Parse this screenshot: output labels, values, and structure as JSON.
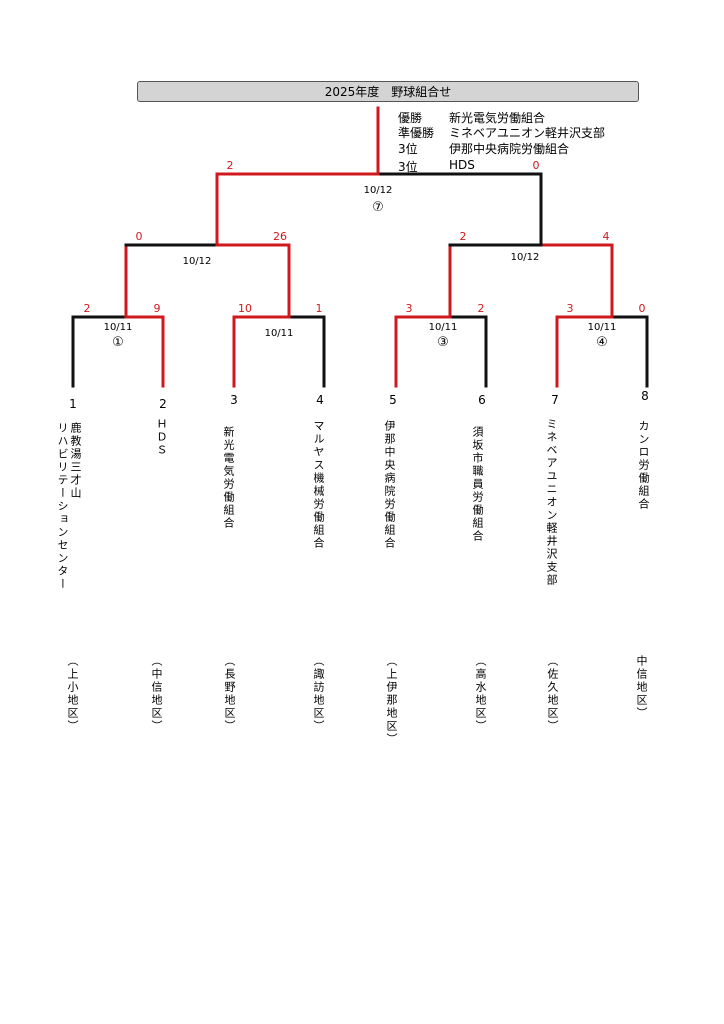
{
  "title": "2025年度　野球組合せ",
  "results": [
    {
      "label": "優勝",
      "team": "新光電気労働組合"
    },
    {
      "label": "準優勝",
      "team": "ミネベアユニオン軽井沢支部"
    },
    {
      "label": "3位",
      "team": "伊那中央病院労働組合"
    },
    {
      "label": "3位",
      "team": "HDS"
    }
  ],
  "teams": [
    {
      "seed": "1",
      "name": "鹿教湯三才山\nリハビリテーションセンター",
      "region": "（上小地区）"
    },
    {
      "seed": "2",
      "name": "ＨＤＳ",
      "region": "（中信地区）"
    },
    {
      "seed": "3",
      "name": "新光電気労働組合",
      "region": "（長野地区）"
    },
    {
      "seed": "4",
      "name": "マルヤス機械労働組合",
      "region": "（諏訪地区）"
    },
    {
      "seed": "5",
      "name": "伊那中央病院労働組合",
      "region": "（上伊那地区）"
    },
    {
      "seed": "6",
      "name": "須坂市職員労働組合",
      "region": "（高水地区）"
    },
    {
      "seed": "7",
      "name": "ミネベアユニオン軽井沢支部",
      "region": "（佐久地区）"
    },
    {
      "seed": "8",
      "name": "カンロ労働組合",
      "region": "中信地区）"
    }
  ],
  "matches": {
    "r1_1": {
      "date": "10/11",
      "no": "①",
      "score_left": "2",
      "score_right": "9"
    },
    "r1_2": {
      "date": "10/11",
      "no": "",
      "score_left": "10",
      "score_right": "1"
    },
    "r1_3": {
      "date": "10/11",
      "no": "③",
      "score_left": "3",
      "score_right": "2"
    },
    "r1_4": {
      "date": "10/11",
      "no": "④",
      "score_left": "3",
      "score_right": "0"
    },
    "sf_1": {
      "date": "10/12",
      "score_left": "0",
      "score_right": "26"
    },
    "sf_2": {
      "date": "10/12",
      "score_left": "2",
      "score_right": "4"
    },
    "final": {
      "date": "10/12",
      "no": "⑦",
      "score_left": "2",
      "score_right": "0"
    }
  },
  "colors": {
    "winner_line": "#d0191e",
    "loser_line": "#111111",
    "score": "#d0191e",
    "title_bg": "#d4d4d4"
  }
}
